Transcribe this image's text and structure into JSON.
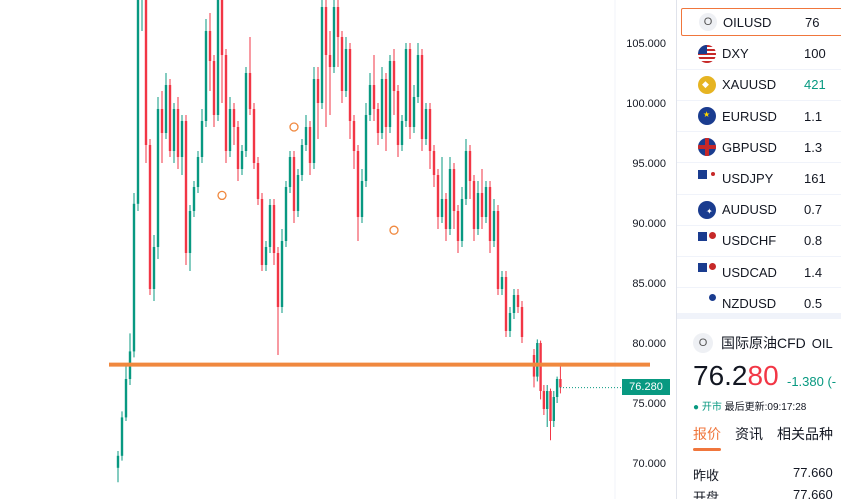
{
  "chart": {
    "price_axis_labels": [
      {
        "value": 105,
        "label": "105.000"
      },
      {
        "value": 100,
        "label": "100.000"
      },
      {
        "value": 95,
        "label": "95.000"
      },
      {
        "value": 90,
        "label": "90.000"
      },
      {
        "value": 85,
        "label": "85.000"
      },
      {
        "value": 80,
        "label": "80.000"
      },
      {
        "value": 75,
        "label": "75.000"
      },
      {
        "value": 70,
        "label": "70.000"
      }
    ],
    "current_price_badge": "76.280",
    "horizontal_line_value": 78.2,
    "up_color": "#089981",
    "down_color": "#f23645",
    "line_color": "#f0883e",
    "candles": [
      [
        69.6,
        70.6,
        68.4,
        71.0
      ],
      [
        70.6,
        73.8,
        70.2,
        74.3
      ],
      [
        73.8,
        77.0,
        73.5,
        78.2
      ],
      [
        77.0,
        79.3,
        76.5,
        80.8
      ],
      [
        79.3,
        91.6,
        78.8,
        92.5
      ],
      [
        91.6,
        108.6,
        91.0,
        109.5
      ],
      [
        108.6,
        112.0,
        106.0,
        113.5
      ],
      [
        112.0,
        96.5,
        95.0,
        113.0
      ],
      [
        96.5,
        84.5,
        84.0,
        97.0
      ],
      [
        84.5,
        88.0,
        83.5,
        89.0
      ],
      [
        88.0,
        99.5,
        87.0,
        100.5
      ],
      [
        99.5,
        97.5,
        95.0,
        101.0
      ],
      [
        97.5,
        101.5,
        97.0,
        102.5
      ],
      [
        101.5,
        96.0,
        95.5,
        102.0
      ],
      [
        96.0,
        99.5,
        95.0,
        100.0
      ],
      [
        99.5,
        95.5,
        94.5,
        100.5
      ],
      [
        95.5,
        98.5,
        94.0,
        99.0
      ],
      [
        98.5,
        87.5,
        86.5,
        99.0
      ],
      [
        87.5,
        91.0,
        86.0,
        91.5
      ],
      [
        91.0,
        93.0,
        90.5,
        93.5
      ],
      [
        93.0,
        95.5,
        92.5,
        96.0
      ],
      [
        95.5,
        98.5,
        95.0,
        99.5
      ],
      [
        98.5,
        106.0,
        98.0,
        107.0
      ],
      [
        106.0,
        103.5,
        101.0,
        107.5
      ],
      [
        103.5,
        99.0,
        98.0,
        104.0
      ],
      [
        99.0,
        110.0,
        98.5,
        111.0
      ],
      [
        110.0,
        104.0,
        100.0,
        111.0
      ],
      [
        104.0,
        96.0,
        95.0,
        104.5
      ],
      [
        96.0,
        99.5,
        95.5,
        100.5
      ],
      [
        99.5,
        98.0,
        96.5,
        100.0
      ],
      [
        98.0,
        94.5,
        93.5,
        98.5
      ],
      [
        94.5,
        96.0,
        94.0,
        96.5
      ],
      [
        96.0,
        102.5,
        95.5,
        103.0
      ],
      [
        102.5,
        99.5,
        99.0,
        105.5
      ],
      [
        99.5,
        95.0,
        94.5,
        100.0
      ],
      [
        95.0,
        92.0,
        91.5,
        95.5
      ],
      [
        92.0,
        86.5,
        86.0,
        92.5
      ],
      [
        86.5,
        88.0,
        86.0,
        88.5
      ],
      [
        88.0,
        91.5,
        87.5,
        92.0
      ],
      [
        91.5,
        87.5,
        86.5,
        92.0
      ],
      [
        87.5,
        83.0,
        79.0,
        88.0
      ],
      [
        83.0,
        88.5,
        82.5,
        89.5
      ],
      [
        88.5,
        93.0,
        88.0,
        93.5
      ],
      [
        93.0,
        95.5,
        92.5,
        96.0
      ],
      [
        95.5,
        91.0,
        90.0,
        96.0
      ],
      [
        91.0,
        94.0,
        90.5,
        94.5
      ],
      [
        94.0,
        96.5,
        93.5,
        97.0
      ],
      [
        96.5,
        98.0,
        96.0,
        99.0
      ],
      [
        98.0,
        95.0,
        94.0,
        98.5
      ],
      [
        95.0,
        102.0,
        94.5,
        103.0
      ],
      [
        102.0,
        100.0,
        97.0,
        103.0
      ],
      [
        100.0,
        108.0,
        99.5,
        112.0
      ],
      [
        108.0,
        104.0,
        98.0,
        109.0
      ],
      [
        104.0,
        103.0,
        99.0,
        106.0
      ],
      [
        103.0,
        108.0,
        102.5,
        109.0
      ],
      [
        108.0,
        105.5,
        103.0,
        109.0
      ],
      [
        105.5,
        101.0,
        100.0,
        106.0
      ],
      [
        101.0,
        104.5,
        100.5,
        105.5
      ],
      [
        104.5,
        98.5,
        97.0,
        105.0
      ],
      [
        98.5,
        96.0,
        94.5,
        99.0
      ],
      [
        96.0,
        90.5,
        88.5,
        96.5
      ],
      [
        90.5,
        93.5,
        90.0,
        94.5
      ],
      [
        93.5,
        99.0,
        93.0,
        100.0
      ],
      [
        99.0,
        101.5,
        98.5,
        102.5
      ],
      [
        101.5,
        99.5,
        98.5,
        104.0
      ],
      [
        99.5,
        97.5,
        96.5,
        100.0
      ],
      [
        97.5,
        102.0,
        97.0,
        103.0
      ],
      [
        102.0,
        98.0,
        96.0,
        102.5
      ],
      [
        98.0,
        103.5,
        97.5,
        104.0
      ],
      [
        103.5,
        101.0,
        99.0,
        104.5
      ],
      [
        101.0,
        96.5,
        95.5,
        101.5
      ],
      [
        96.5,
        98.5,
        96.0,
        99.0
      ],
      [
        98.5,
        104.5,
        98.0,
        105.0
      ],
      [
        104.5,
        98.0,
        97.0,
        105.0
      ],
      [
        98.0,
        100.5,
        97.5,
        101.5
      ],
      [
        100.5,
        104.0,
        100.0,
        105.0
      ],
      [
        104.0,
        97.0,
        96.0,
        104.5
      ],
      [
        97.0,
        99.5,
        96.5,
        100.0
      ],
      [
        99.5,
        96.0,
        94.5,
        100.0
      ],
      [
        96.0,
        94.0,
        93.0,
        96.5
      ],
      [
        94.0,
        90.5,
        89.5,
        94.5
      ],
      [
        90.5,
        92.0,
        90.0,
        95.5
      ],
      [
        92.0,
        89.5,
        88.5,
        92.5
      ],
      [
        89.5,
        94.5,
        89.0,
        95.5
      ],
      [
        94.5,
        91.0,
        89.5,
        95.0
      ],
      [
        91.0,
        88.5,
        87.5,
        91.5
      ],
      [
        88.5,
        92.0,
        88.0,
        93.0
      ],
      [
        92.0,
        96.0,
        91.5,
        97.0
      ],
      [
        96.0,
        93.5,
        92.0,
        96.5
      ],
      [
        93.5,
        89.5,
        88.5,
        94.0
      ],
      [
        89.5,
        92.5,
        89.0,
        93.5
      ],
      [
        92.5,
        90.5,
        89.5,
        94.5
      ],
      [
        90.5,
        93.0,
        90.0,
        93.5
      ],
      [
        93.0,
        88.5,
        87.5,
        93.5
      ],
      [
        88.5,
        91.0,
        88.0,
        92.0
      ],
      [
        91.0,
        84.5,
        84.0,
        91.5
      ],
      [
        84.5,
        85.5,
        84.0,
        86.0
      ],
      [
        85.5,
        81.0,
        80.5,
        86.0
      ],
      [
        81.0,
        82.5,
        80.5,
        83.0
      ],
      [
        82.5,
        84.0,
        82.0,
        84.5
      ],
      [
        84.0,
        83.0,
        82.5,
        84.5
      ],
      [
        83.0,
        80.5,
        80.0,
        83.5
      ]
    ],
    "candles_tail": [
      [
        79.0,
        77.2,
        76.3,
        79.5
      ],
      [
        77.2,
        80.0,
        76.8,
        80.3
      ],
      [
        80.0,
        76.0,
        75.3,
        80.2
      ],
      [
        76.0,
        74.5,
        74.0,
        76.5
      ],
      [
        74.5,
        76.0,
        73.0,
        76.5
      ],
      [
        76.0,
        73.5,
        71.9,
        76.2
      ],
      [
        73.5,
        75.5,
        73.0,
        76.0
      ],
      [
        75.5,
        77.0,
        75.0,
        77.2
      ],
      [
        77.0,
        76.3,
        75.8,
        78.2
      ]
    ],
    "markers": [
      {
        "index": 26,
        "value": 92.3
      },
      {
        "index": 44,
        "value": 98.0
      },
      {
        "index": 69,
        "value": 89.4
      }
    ]
  },
  "watchlist": [
    {
      "symbol": "OILUSD",
      "value": "76",
      "icon": "oil-icon",
      "selected": true,
      "value_color": "default"
    },
    {
      "symbol": "DXY",
      "value": "100",
      "icon": "us-flag-icon",
      "selected": false,
      "value_color": "default"
    },
    {
      "symbol": "XAUUSD",
      "value": "421",
      "icon": "gold-icon",
      "selected": false,
      "value_color": "green"
    },
    {
      "symbol": "EURUSD",
      "value": "1.1",
      "icon": "eu-flag-icon",
      "selected": false,
      "value_color": "default"
    },
    {
      "symbol": "GBPUSD",
      "value": "1.3",
      "icon": "gb-flag-icon",
      "selected": false,
      "value_color": "default"
    },
    {
      "symbol": "USDJPY",
      "value": "161",
      "icon": "us-jp-flag-icon",
      "selected": false,
      "value_color": "default"
    },
    {
      "symbol": "AUDUSD",
      "value": "0.7",
      "icon": "au-flag-icon",
      "selected": false,
      "value_color": "default"
    },
    {
      "symbol": "USDCHF",
      "value": "0.8",
      "icon": "us-ch-flag-icon",
      "selected": false,
      "value_color": "default"
    },
    {
      "symbol": "USDCAD",
      "value": "1.4",
      "icon": "us-ca-flag-icon",
      "selected": false,
      "value_color": "default"
    },
    {
      "symbol": "NZDUSD",
      "value": "0.5",
      "icon": "nz-flag-icon",
      "selected": false,
      "value_color": "default"
    }
  ],
  "detail": {
    "icon_letter": "O",
    "name": "国际原油CFD",
    "symbol": "OIL",
    "price_main": "76.2",
    "price_highlight": "80",
    "change": "-1.380 (-",
    "status_dot": "●",
    "status": "开市",
    "updated_label": "最后更新:",
    "updated_time": "09:17:28",
    "tabs": [
      "报价",
      "资讯",
      "相关品种"
    ],
    "stats": [
      {
        "label": "昨收",
        "value": "77.660"
      },
      {
        "label": "开盘",
        "value": "77.660"
      }
    ]
  }
}
